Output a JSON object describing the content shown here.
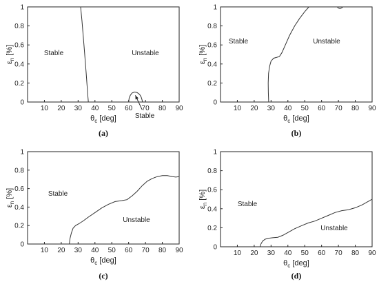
{
  "chart_data": [
    {
      "type": "line",
      "panel_label": "(a)",
      "xlabel": "θc [deg]",
      "ylabel": "εn [%]",
      "xlim": [
        0,
        90
      ],
      "ylim": [
        0,
        1
      ],
      "xticks": [
        10,
        20,
        30,
        40,
        50,
        60,
        70,
        80,
        90
      ],
      "yticks": [
        0,
        0.2,
        0.4,
        0.6,
        0.8,
        1
      ],
      "region_labels": [
        "Stable",
        "Unstable",
        "Stable"
      ],
      "annotation_arrow": {
        "from": [
          68,
          -0.08
        ],
        "to": [
          64,
          0.07
        ]
      },
      "curves": [
        {
          "x": [
            31.5,
            32.3,
            33.0,
            33.7,
            34.3,
            34.8,
            35.3,
            35.7,
            36.0,
            36.1
          ],
          "y": [
            1.0,
            0.85,
            0.7,
            0.55,
            0.42,
            0.3,
            0.18,
            0.08,
            0.02,
            0.0
          ]
        },
        {
          "x": [
            60.0,
            60.3,
            61.0,
            62.0,
            63.5,
            65.0,
            66.5,
            67.5,
            68.0,
            68.3
          ],
          "y": [
            0.0,
            0.04,
            0.07,
            0.095,
            0.105,
            0.1,
            0.08,
            0.05,
            0.02,
            0.0
          ]
        }
      ]
    },
    {
      "type": "line",
      "panel_label": "(b)",
      "xlabel": "θc [deg]",
      "ylabel": "εn [%]",
      "xlim": [
        0,
        90
      ],
      "ylim": [
        0,
        1
      ],
      "xticks": [
        10,
        20,
        30,
        40,
        50,
        60,
        70,
        80,
        90
      ],
      "yticks": [
        0,
        0.2,
        0.4,
        0.6,
        0.8,
        1
      ],
      "region_labels": [
        "Stable",
        "Unstable"
      ],
      "curves": [
        {
          "x": [
            28.6,
            28.4,
            28.3,
            28.5,
            29.2,
            30.0,
            31.5,
            33.5,
            35.0,
            36.5,
            38.5,
            41.0,
            44.0,
            47.0,
            50.0,
            52.5
          ],
          "y": [
            0.0,
            0.1,
            0.2,
            0.3,
            0.38,
            0.43,
            0.46,
            0.47,
            0.48,
            0.52,
            0.6,
            0.7,
            0.8,
            0.88,
            0.95,
            1.0
          ]
        },
        {
          "x": [
            69.3,
            69.8,
            70.5,
            71.3,
            72.0,
            72.6
          ],
          "y": [
            1.0,
            0.99,
            0.985,
            0.985,
            0.99,
            1.0
          ]
        }
      ]
    },
    {
      "type": "line",
      "panel_label": "(c)",
      "xlabel": "θc [deg]",
      "ylabel": "εn [%]",
      "xlim": [
        0,
        90
      ],
      "ylim": [
        0,
        1
      ],
      "xticks": [
        10,
        20,
        30,
        40,
        50,
        60,
        70,
        80,
        90
      ],
      "yticks": [
        0,
        0.2,
        0.4,
        0.6,
        0.8,
        1
      ],
      "region_labels": [
        "Stable",
        "Unstable"
      ],
      "curves": [
        {
          "x": [
            24.8,
            25.2,
            26.0,
            27.0,
            28.5,
            30.5,
            33.0,
            36.0,
            40.0,
            44.0,
            48.0,
            52.0,
            56.0,
            59.0,
            62.0,
            65.0,
            68.0,
            71.0,
            74.0,
            77.0,
            80.0,
            83.0,
            86.0,
            88.0,
            90.0
          ],
          "y": [
            0.0,
            0.06,
            0.12,
            0.17,
            0.2,
            0.22,
            0.25,
            0.29,
            0.34,
            0.39,
            0.43,
            0.46,
            0.47,
            0.48,
            0.52,
            0.57,
            0.63,
            0.68,
            0.71,
            0.73,
            0.74,
            0.74,
            0.73,
            0.725,
            0.73
          ]
        }
      ]
    },
    {
      "type": "line",
      "panel_label": "(d)",
      "xlabel": "θc [deg]",
      "ylabel": "εn [%]",
      "xlim": [
        0,
        90
      ],
      "ylim": [
        0,
        1
      ],
      "xticks": [
        10,
        20,
        30,
        40,
        50,
        60,
        70,
        80,
        90
      ],
      "yticks": [
        0,
        0.2,
        0.4,
        0.6,
        0.8,
        1
      ],
      "region_labels": [
        "Stable",
        "Unstable"
      ],
      "curves": [
        {
          "x": [
            23.5,
            24.0,
            25.0,
            26.5,
            28.5,
            31.0,
            34.0,
            37.0,
            40.0,
            44.0,
            48.0,
            52.0,
            56.0,
            60.0,
            64.0,
            68.0,
            72.0,
            76.0,
            80.0,
            84.0,
            88.0,
            90.0
          ],
          "y": [
            0.0,
            0.03,
            0.06,
            0.08,
            0.09,
            0.095,
            0.1,
            0.12,
            0.15,
            0.19,
            0.22,
            0.25,
            0.27,
            0.3,
            0.33,
            0.36,
            0.38,
            0.39,
            0.41,
            0.44,
            0.48,
            0.5
          ]
        }
      ]
    }
  ]
}
